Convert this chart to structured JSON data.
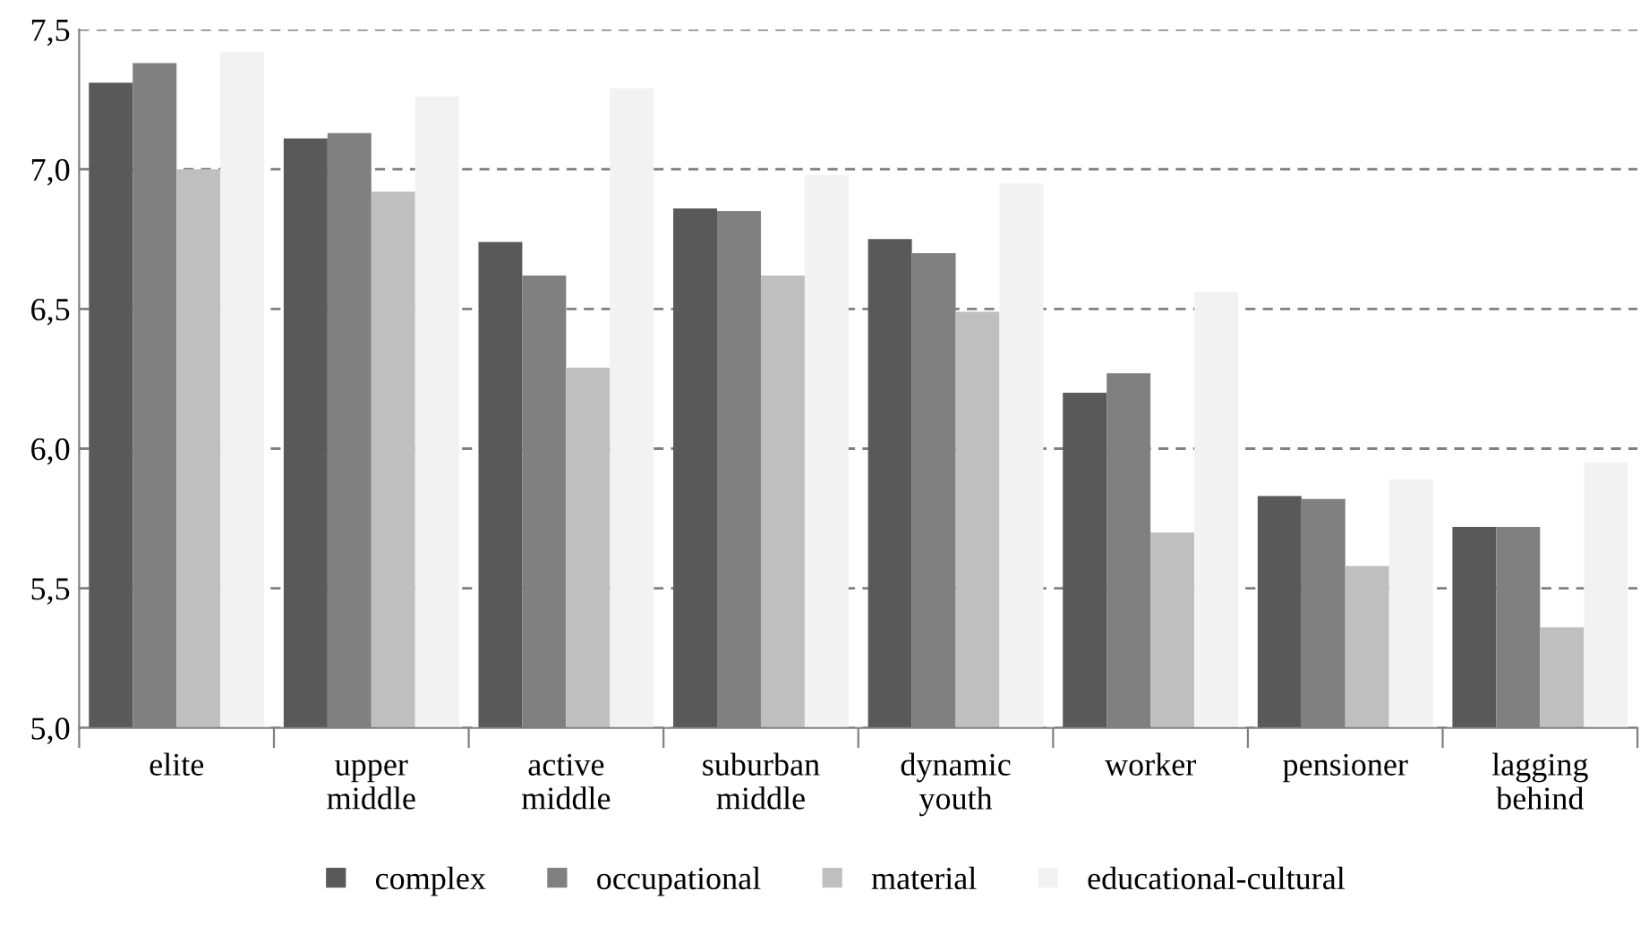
{
  "chart_data": {
    "type": "bar",
    "categories": [
      "elite",
      "upper\nmiddle",
      "active\nmiddle",
      "suburban\nmiddle",
      "dynamic\nyouth",
      "worker",
      "pensioner",
      "lagging\nbehind"
    ],
    "series": [
      {
        "name": "complex",
        "color": "#595959",
        "values": [
          7.31,
          7.11,
          6.74,
          6.86,
          6.75,
          6.2,
          5.83,
          5.72
        ]
      },
      {
        "name": "occupational",
        "color": "#808080",
        "values": [
          7.38,
          7.13,
          6.62,
          6.85,
          6.7,
          6.27,
          5.82,
          5.72
        ]
      },
      {
        "name": "material",
        "color": "#bfbfbf",
        "values": [
          7.0,
          6.92,
          6.29,
          6.62,
          6.49,
          5.7,
          5.58,
          5.36
        ]
      },
      {
        "name": "educational-cultural",
        "color": "#f2f2f2",
        "values": [
          7.42,
          7.26,
          7.29,
          6.98,
          6.95,
          6.56,
          5.89,
          5.95
        ]
      }
    ],
    "ylim": [
      5.0,
      7.5
    ],
    "yticks": [
      {
        "value": 5.0,
        "label": "5,0"
      },
      {
        "value": 5.5,
        "label": "5,5"
      },
      {
        "value": 6.0,
        "label": "6,0"
      },
      {
        "value": 6.5,
        "label": "6,5"
      },
      {
        "value": 7.0,
        "label": "7,0"
      },
      {
        "value": 7.5,
        "label": "7,5"
      }
    ],
    "grid": "y",
    "legend": "bottom",
    "marker": "square"
  }
}
